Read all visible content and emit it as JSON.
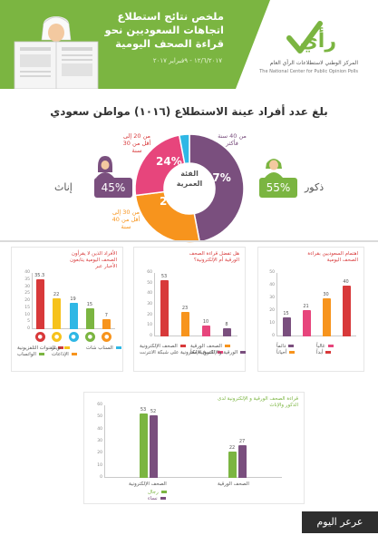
{
  "colors": {
    "green": "#7bb541",
    "purple": "#7a4f7e",
    "red": "#d8393a",
    "orange": "#f7941d",
    "yellow": "#f6c21c",
    "blue": "#2fb7e5",
    "pink": "#e7457c",
    "grey": "#d9d9d9"
  },
  "header": {
    "title": "ملخص نتائج استطلاع اتجاهات السعوديين نحو قراءة الصحف اليومية",
    "date": "١٢/٦/٢٠١٧ - ٩فبراير ٢٠١٧",
    "logo_word": "رأي",
    "logo_ar": "المركز الوطني لاستطلاعات الرأي العام",
    "logo_en": "The National Center for Public Opinion Polls"
  },
  "sample": {
    "title": "بلغ عدد أفراد عينة الاستطلاع (١٠١٦) مواطن سعودي",
    "center_label": "الفئة العمرية",
    "males_label": "ذكور",
    "males_value": "55%",
    "females_label": "إناث",
    "females_value": "45%"
  },
  "footer": {
    "brand": "عرعر اليوم"
  },
  "chart_data": [
    {
      "id": "age_groups",
      "type": "pie",
      "title": "الفئة العمرية",
      "slices": [
        {
          "label": "من 40 سنة فأكثر",
          "value": 47,
          "text": "47%",
          "color": "#7a4f7e"
        },
        {
          "label": "من 30 إلى أقل من 40 سنة",
          "value": 26,
          "text": "26%",
          "color": "#f7941d"
        },
        {
          "label": "من 20 إلى أقل من 30 سنة",
          "value": 24,
          "text": "24%",
          "color": "#e7457c"
        },
        {
          "label": "",
          "value": 3,
          "text": "",
          "color": "#2fb7e5"
        }
      ]
    },
    {
      "id": "frequency",
      "type": "bar",
      "title": "اهتمام السعوديين بقراءة الصحف اليومية",
      "categories": [
        "دائماً",
        "غالباً",
        "أحياناً",
        "أبداً"
      ],
      "values": [
        15,
        21,
        30,
        40
      ],
      "labels": [
        "15",
        "21",
        "30",
        "40"
      ],
      "colors": [
        "#7a4f7e",
        "#e7457c",
        "#f7941d",
        "#d8393a"
      ],
      "ylim": [
        0,
        50
      ],
      "ticks": [
        "50",
        "40",
        "30",
        "20",
        "10",
        "0"
      ]
    },
    {
      "id": "format",
      "type": "bar",
      "title": "هل تفضل قراءة الصحف الورقية أم الإلكترونية؟",
      "categories": [
        "الصحف الإلكترونية",
        "الصحف الورقية",
        "النسخ الإلكترونية على شبكة الانترنت",
        "الورقية والإلكترونية معاً"
      ],
      "values": [
        53,
        23,
        10,
        8
      ],
      "labels": [
        "53",
        "23",
        "10",
        "8"
      ],
      "colors": [
        "#d8393a",
        "#f7941d",
        "#e7457c",
        "#7a4f7e"
      ],
      "ylim": [
        0,
        60
      ],
      "ticks": [
        "60",
        "50",
        "40",
        "30",
        "20",
        "10",
        "0"
      ]
    },
    {
      "id": "channels",
      "type": "bar",
      "title": "الأفراد الذين لا يقرأون الصحف اليومية يتابعون الأخبار عبر",
      "categories": [
        "القنوات التلفزيونية",
        "تويتر",
        "السناب شات",
        "الواتساب",
        "الإذاعات"
      ],
      "values": [
        35.3,
        22,
        19,
        15,
        7
      ],
      "labels": [
        "35.3",
        "22",
        "19",
        "15",
        "7"
      ],
      "colors": [
        "#d8393a",
        "#f6c21c",
        "#2fb7e5",
        "#7bb541",
        "#f7941d"
      ],
      "ylim": [
        0,
        40
      ],
      "ticks": [
        "40",
        "35",
        "30",
        "25",
        "20",
        "15",
        "10",
        "5",
        "0"
      ]
    },
    {
      "id": "gender_format",
      "type": "bar",
      "title": "قراءة الصحف الورقية و الإلكترونية لدى الذكور والإناث",
      "categories": [
        "الصحف الإلكترونية",
        "الصحف الورقية"
      ],
      "series": [
        {
          "name": "رجال",
          "values": [
            53,
            22
          ],
          "color": "#7bb541"
        },
        {
          "name": "نساء",
          "values": [
            52,
            27
          ],
          "color": "#7a4f7e"
        }
      ],
      "ylim": [
        0,
        60
      ],
      "ticks": [
        "60",
        "50",
        "40",
        "30",
        "20",
        "10",
        "0"
      ]
    }
  ]
}
